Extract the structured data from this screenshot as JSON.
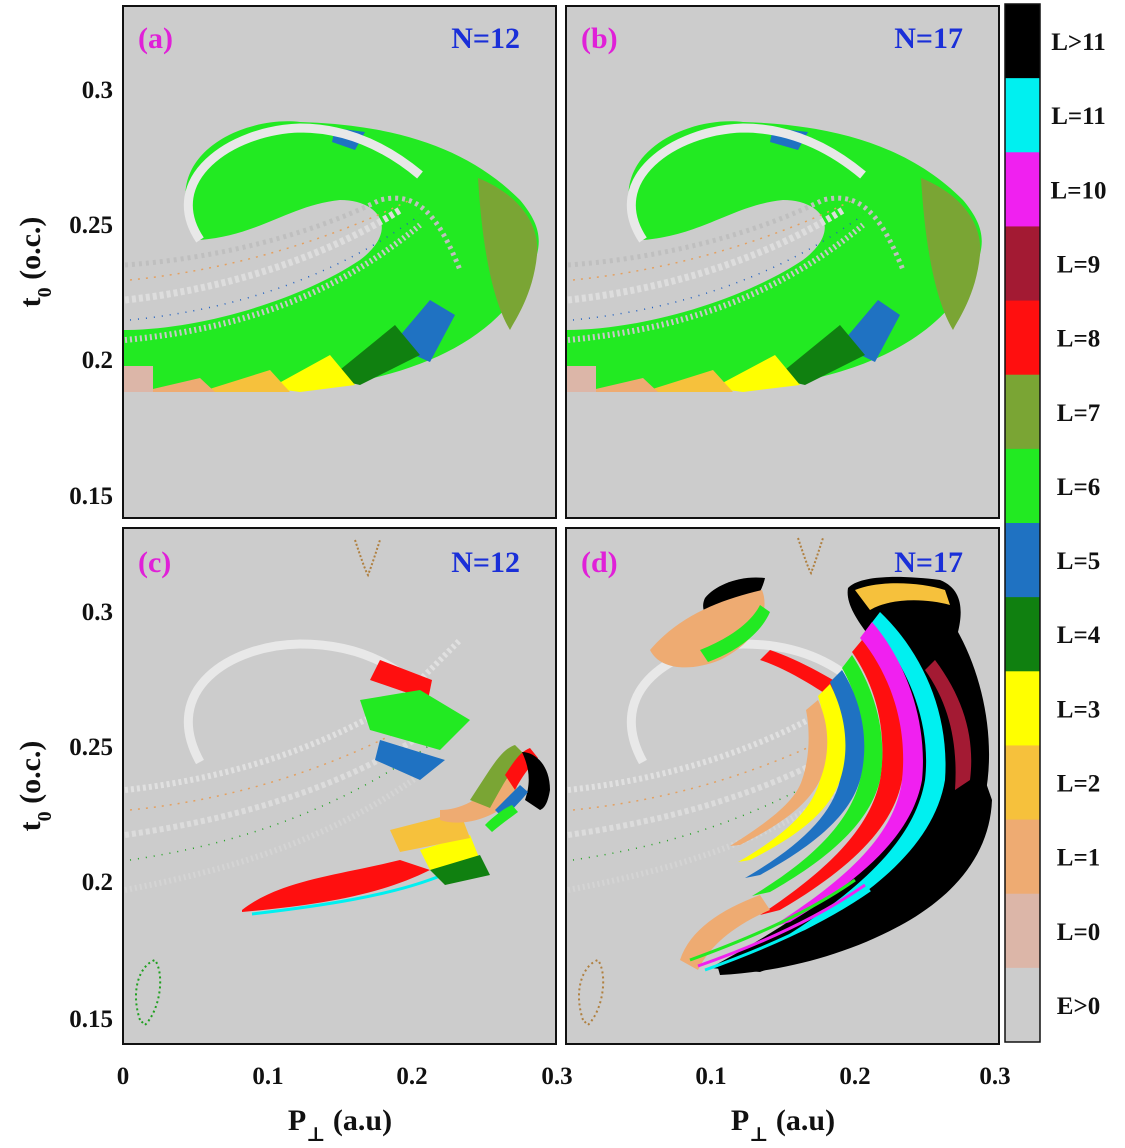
{
  "chart_data": {
    "type": "heatmap",
    "xlabel": {
      "main": "P",
      "sub": "⊥",
      "unit": " (a.u)"
    },
    "ylabel": {
      "main": "t",
      "sub": "0",
      "unit": " (o.c.)"
    },
    "xlim": [
      0,
      0.3
    ],
    "ylim": [
      0.14,
      0.33
    ],
    "xticks": [
      "0",
      "0.1",
      "0.2",
      "0.3"
    ],
    "xticks_right": [
      "0.1",
      "0.2",
      "0.3"
    ],
    "yticks": [
      "0.3",
      "0.25",
      "0.2",
      "0.15"
    ],
    "panels": [
      {
        "id": "a",
        "label": "(a)",
        "n_label": "N=12"
      },
      {
        "id": "b",
        "label": "(b)",
        "n_label": "N=17"
      },
      {
        "id": "c",
        "label": "(c)",
        "n_label": "N=12"
      },
      {
        "id": "d",
        "label": "(d)",
        "n_label": "N=17"
      }
    ],
    "colorbar": {
      "entries": [
        {
          "label": "L>11",
          "color": "#000000"
        },
        {
          "label": "L=11",
          "color": "#00f0f0"
        },
        {
          "label": "L=10",
          "color": "#f020f0"
        },
        {
          "label": "L=9",
          "color": "#a31a33"
        },
        {
          "label": "L=8",
          "color": "#ff0f0f"
        },
        {
          "label": "L=7",
          "color": "#7aa534"
        },
        {
          "label": "L=6",
          "color": "#22ea22"
        },
        {
          "label": "L=5",
          "color": "#1f72c2"
        },
        {
          "label": "L=4",
          "color": "#108010"
        },
        {
          "label": "L=3",
          "color": "#ffff00"
        },
        {
          "label": "L=2",
          "color": "#f6c13c"
        },
        {
          "label": "L=1",
          "color": "#eeab72"
        },
        {
          "label": "L=0",
          "color": "#dcb6a8"
        },
        {
          "label": "E>0",
          "color": "#cccccc"
        }
      ]
    },
    "background_color": "#cccccc"
  }
}
